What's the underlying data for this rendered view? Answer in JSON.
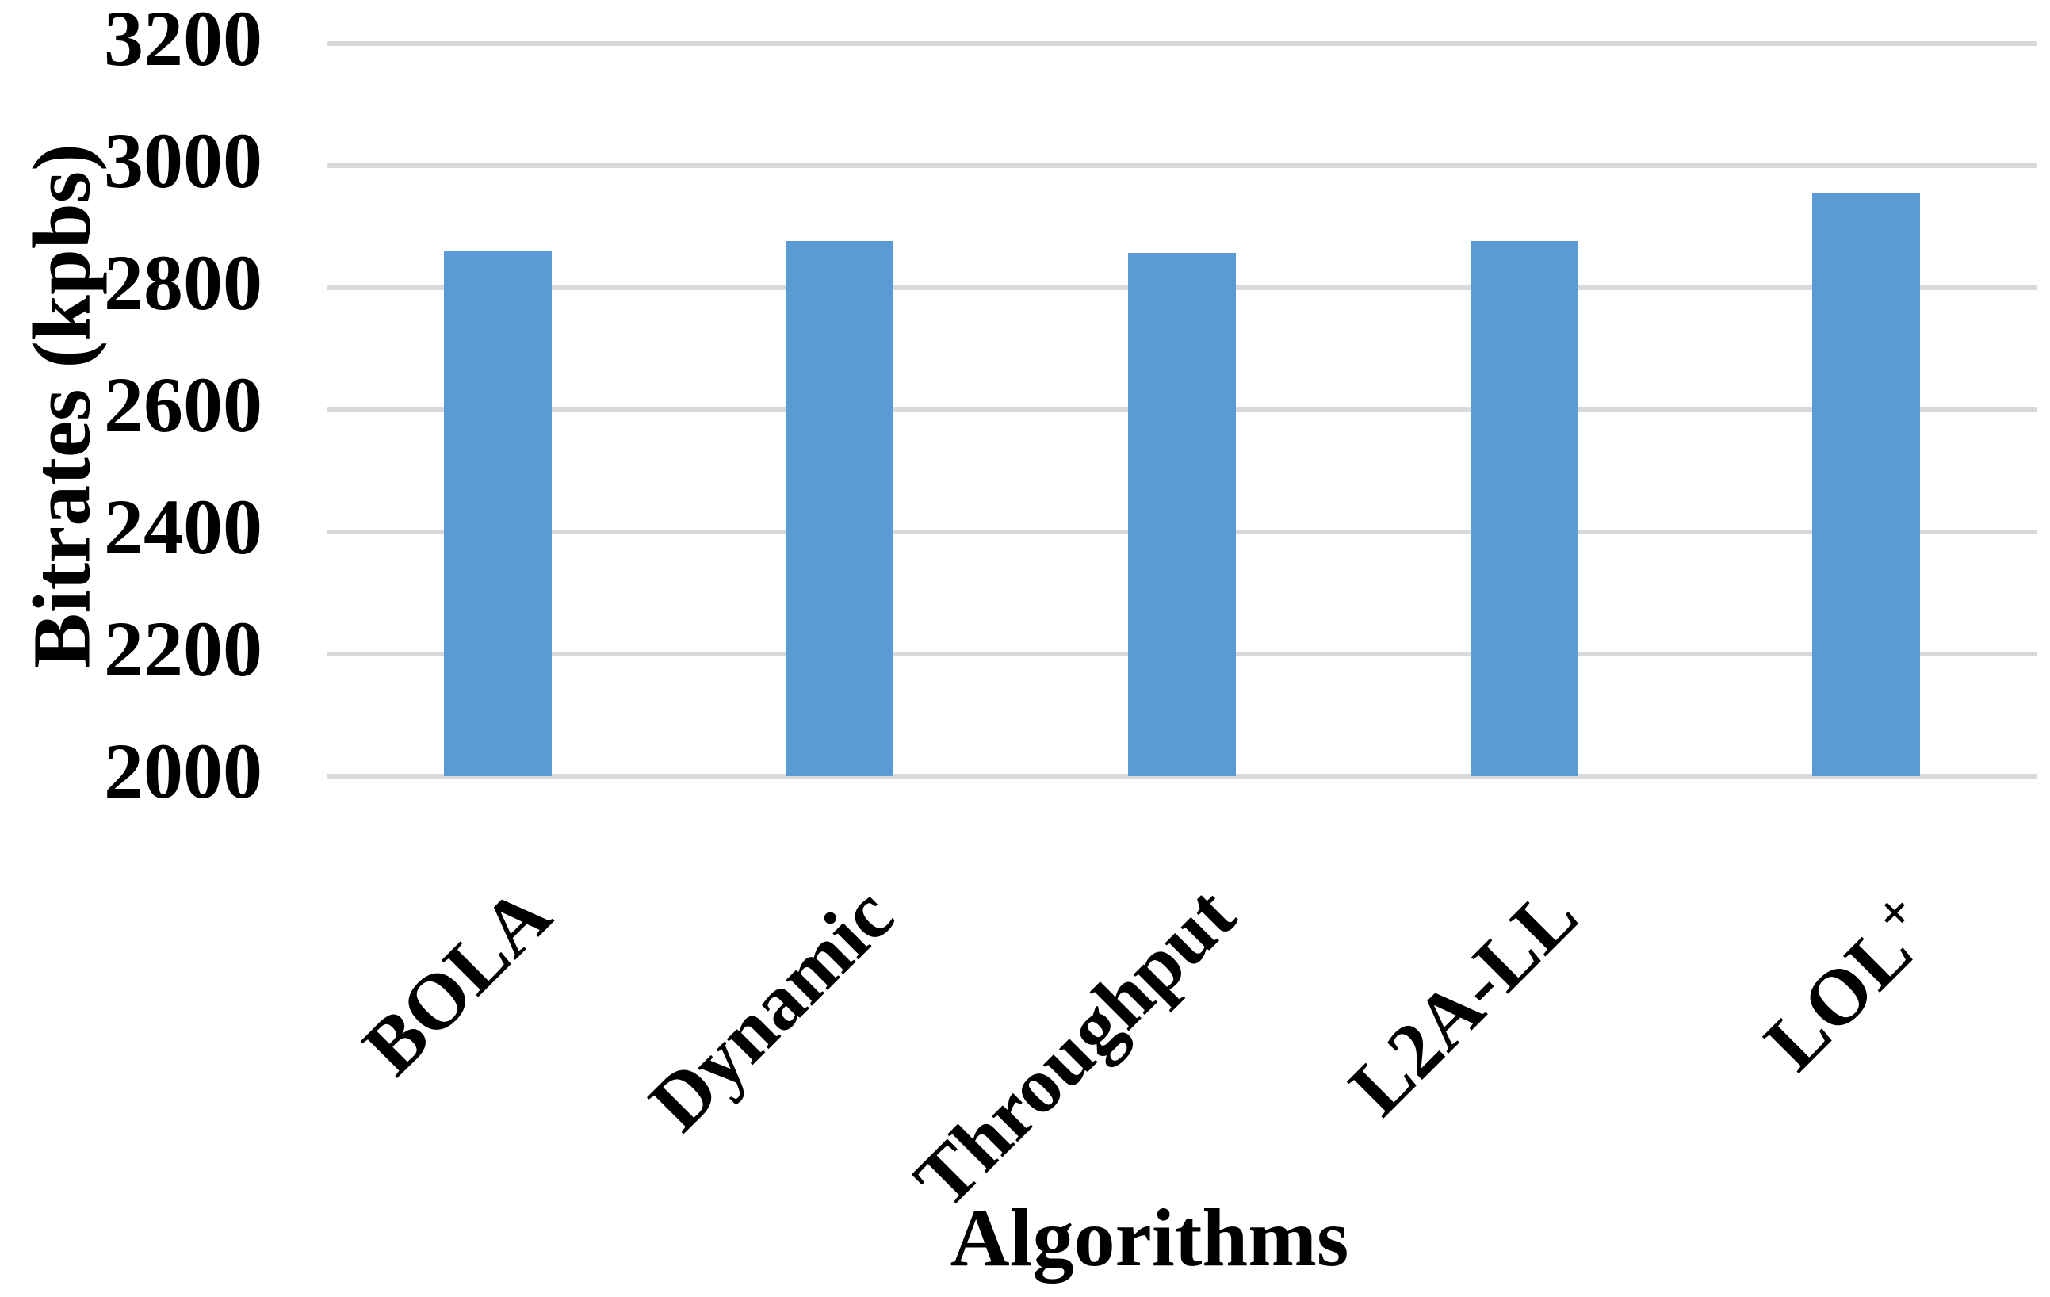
{
  "chart_data": {
    "type": "bar",
    "title": "",
    "categories": [
      "BOLA",
      "Dynamic",
      "Throughput",
      "L2A-LL",
      "LOL+"
    ],
    "categories_rich": [
      {
        "text": "BOLA",
        "sup": ""
      },
      {
        "text": "Dynamic",
        "sup": ""
      },
      {
        "text": "Throughput",
        "sup": ""
      },
      {
        "text": "L2A-LL",
        "sup": ""
      },
      {
        "text": "LOL",
        "sup": "+"
      }
    ],
    "values": [
      2860,
      2876,
      2857,
      2876,
      2954
    ],
    "xlabel": "Algorithms",
    "ylabel": "Bitrates (kpbs)",
    "ylim": [
      2000,
      3200
    ],
    "yticks": [
      2000,
      2200,
      2400,
      2600,
      2800,
      3000,
      3200
    ],
    "grid": true,
    "legend": "none",
    "bar_color": "#5B9BD5",
    "gridline_color": "#D9D9D9",
    "text_color": "#000000",
    "background": "#FFFFFF"
  }
}
